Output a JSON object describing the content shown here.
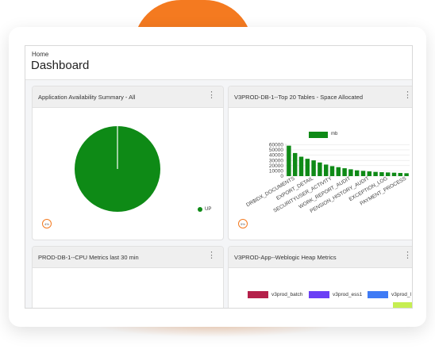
{
  "breadcrumb": "Home",
  "page_title": "Dashboard",
  "widgets": [
    {
      "title": "Application Availability Summary - All",
      "legend": "UP",
      "badge": "4%"
    },
    {
      "title": "V3PROD-DB-1--Top 20 Tables - Space Allocated",
      "legend": "mb",
      "badge": "5%"
    },
    {
      "title": "PROD-DB-1--CPU Metrics last 30 min"
    },
    {
      "title": "V3PROD-App--Weblogic Heap Metrics",
      "legend_items": [
        {
          "label": "v3prod_batch",
          "color": "#b4204a"
        },
        {
          "label": "v3prod_ess1",
          "color": "#6a3ff5"
        },
        {
          "label": "v3prod_l",
          "color": "#3f7bf5"
        }
      ]
    }
  ],
  "colors": {
    "accent": "#f47a20",
    "series": "#0e8a16"
  },
  "chart_data": [
    {
      "type": "pie",
      "labels": [
        "UP"
      ],
      "values": [
        100
      ],
      "title": "Application Availability Summary - All"
    },
    {
      "type": "bar",
      "title": "V3PROD-DB-1--Top 20 Tables - Space Allocated",
      "series": [
        {
          "name": "mb",
          "values": [
            58000,
            44000,
            37000,
            33000,
            30000,
            26000,
            22000,
            19000,
            17000,
            15000,
            13000,
            11000,
            10000,
            9000,
            8000,
            7500,
            7000,
            6500,
            6000,
            5500
          ]
        }
      ],
      "yticks": [
        "0",
        "10000",
        "20000",
        "30000",
        "40000",
        "50000",
        "60000"
      ],
      "ylim": [
        0,
        62000
      ],
      "xtick_labels": [
        "DR$IDX_DOCUMENTS",
        "EXPORT_DETAIL",
        "SECURITYUSER_ACTIVITY",
        "WORK_REPORT_AUDIT",
        "PENSION_HISTORY_AUDIT",
        "EXCEPTION_LOG",
        "PAYMENT_PROCESS"
      ],
      "legend_position": "top"
    }
  ]
}
